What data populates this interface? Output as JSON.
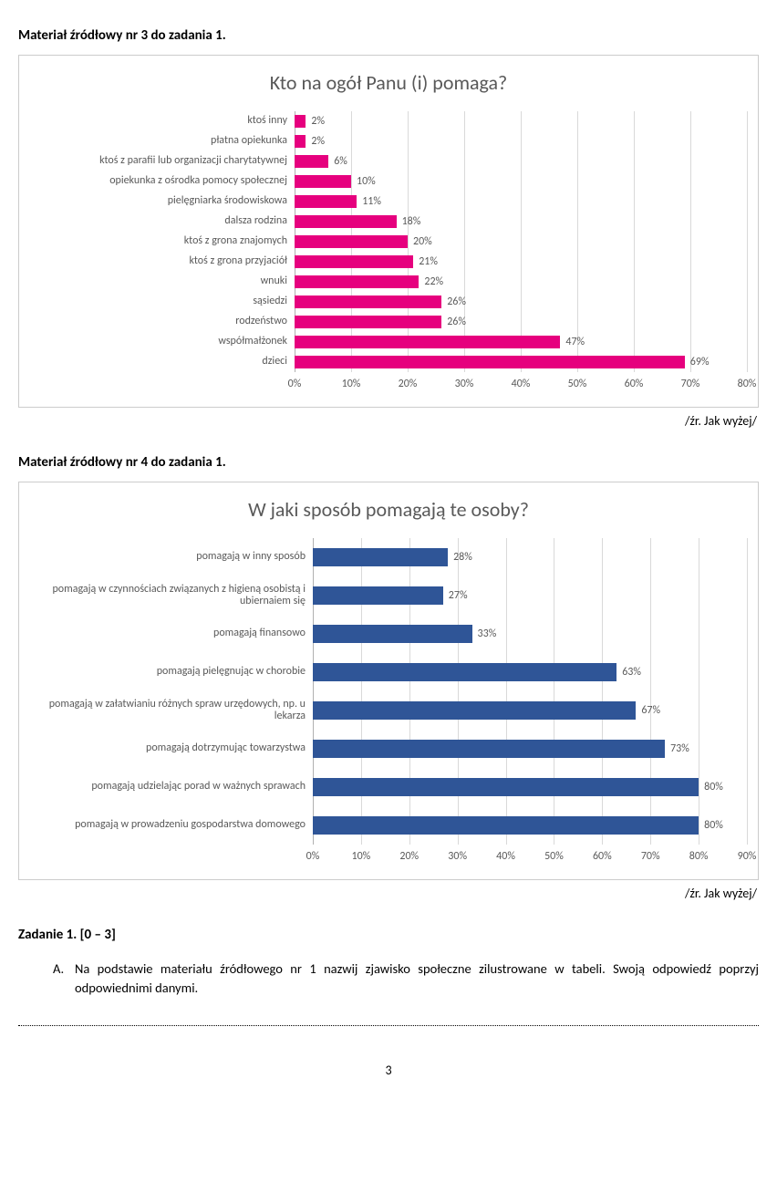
{
  "section1": {
    "heading": "Materiał źródłowy nr 3 do zadania 1.",
    "source": "/źr. Jak wyżej/"
  },
  "section2": {
    "heading": "Materiał źródłowy nr 4 do zadania 1.",
    "source": "/źr. Jak wyżej/"
  },
  "chart1": {
    "type": "bar",
    "title": "Kto na ogół Panu (i) pomaga?",
    "title_fontsize": 22,
    "title_color": "#595959",
    "label_width": 290,
    "bar_color": "#e6007e",
    "background_color": "#ffffff",
    "grid_color": "#d9d9d9",
    "axis_color": "#b0b0b0",
    "label_color": "#595959",
    "label_fontsize": 12,
    "xmin": 0,
    "xmax": 80,
    "xtick_step": 10,
    "xticks": [
      "0%",
      "10%",
      "20%",
      "30%",
      "40%",
      "50%",
      "60%",
      "70%",
      "80%"
    ],
    "bars": [
      {
        "label": "ktoś inny",
        "value": 2
      },
      {
        "label": "płatna opiekunka",
        "value": 2
      },
      {
        "label": "ktoś z parafii lub organizacji charytatywnej",
        "value": 6
      },
      {
        "label": "opiekunka z ośrodka pomocy społecznej",
        "value": 10
      },
      {
        "label": "pielęgniarka środowiskowa",
        "value": 11
      },
      {
        "label": "dalsza rodzina",
        "value": 18
      },
      {
        "label": "ktoś z grona znajomych",
        "value": 20
      },
      {
        "label": "ktoś z grona przyjaciół",
        "value": 21
      },
      {
        "label": "wnuki",
        "value": 22
      },
      {
        "label": "sąsiedzi",
        "value": 26
      },
      {
        "label": "rodzeństwo",
        "value": 26
      },
      {
        "label": "współmałżonek",
        "value": 47
      },
      {
        "label": "dzieci",
        "value": 69
      }
    ]
  },
  "chart2": {
    "type": "bar",
    "title": "W jaki sposób pomagają te osoby?",
    "title_fontsize": 22,
    "title_color": "#595959",
    "label_width": 310,
    "bar_color": "#2f5597",
    "background_color": "#ffffff",
    "grid_color": "#d9d9d9",
    "axis_color": "#b0b0b0",
    "label_color": "#595959",
    "label_fontsize": 12,
    "xmin": 0,
    "xmax": 90,
    "xtick_step": 10,
    "xticks": [
      "0%",
      "10%",
      "20%",
      "30%",
      "40%",
      "50%",
      "60%",
      "70%",
      "80%",
      "90%"
    ],
    "bars": [
      {
        "label": "pomagają w inny sposób",
        "value": 28
      },
      {
        "label": "pomagają w czynnościach związanych z higieną osobistą i ubiernaiem się",
        "value": 27
      },
      {
        "label": "pomagają finansowo",
        "value": 33
      },
      {
        "label": "pomagają pielęgnując w chorobie",
        "value": 63
      },
      {
        "label": "pomagają w załatwianiu różnych spraw urzędowych, np. u lekarza",
        "value": 67
      },
      {
        "label": "pomagają dotrzymując towarzystwa",
        "value": 73
      },
      {
        "label": "pomagają udzielając porad w ważnych sprawach",
        "value": 80
      },
      {
        "label": "pomagają w prowadzeniu gospodarstwa domowego",
        "value": 80
      }
    ]
  },
  "task": {
    "heading": "Zadanie 1. [0 – 3]",
    "items": [
      {
        "letter": "A.",
        "text": "Na podstawie materiału źródłowego nr 1 nazwij zjawisko społeczne zilustrowane w tabeli. Swoją odpowiedź poprzyj odpowiednimi danymi."
      }
    ]
  },
  "page_number": "3"
}
